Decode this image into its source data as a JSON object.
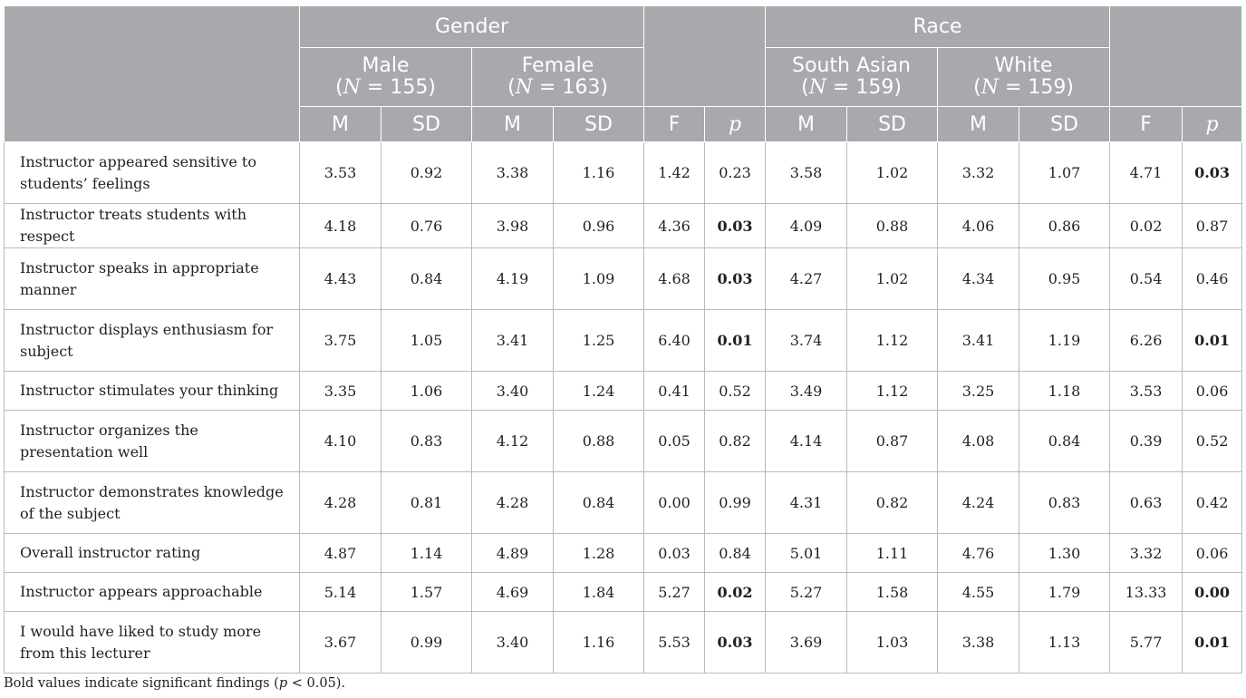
{
  "header": {
    "gender": "Gender",
    "race": "Race",
    "groups": [
      {
        "name": "Male",
        "n_prefix": "(",
        "n_var": "N",
        "n_rest": " = 155)"
      },
      {
        "name": "Female",
        "n_prefix": "(",
        "n_var": "N",
        "n_rest": " = 163)"
      },
      {
        "name": "South Asian",
        "n_prefix": "(",
        "n_var": "N",
        "n_rest": " = 159)"
      },
      {
        "name": "White",
        "n_prefix": "(",
        "n_var": "N",
        "n_rest": " = 159)"
      }
    ],
    "m": "M",
    "sd": "SD",
    "f": "F",
    "p": "p"
  },
  "rows": [
    {
      "label": "Instructor appeared sensitive to students’ feelings",
      "tall": true,
      "cells": [
        "3.53",
        "0.92",
        "3.38",
        "1.16",
        "1.42",
        "0.23",
        "3.58",
        "1.02",
        "3.32",
        "1.07",
        "4.71",
        "0.03"
      ],
      "sig": [
        false,
        false,
        false,
        false,
        false,
        false,
        false,
        false,
        false,
        false,
        false,
        true
      ]
    },
    {
      "label": "Instructor treats students with respect",
      "tall": false,
      "cells": [
        "4.18",
        "0.76",
        "3.98",
        "0.96",
        "4.36",
        "0.03",
        "4.09",
        "0.88",
        "4.06",
        "0.86",
        "0.02",
        "0.87"
      ],
      "sig": [
        false,
        false,
        false,
        false,
        false,
        true,
        false,
        false,
        false,
        false,
        false,
        false
      ]
    },
    {
      "label": "Instructor speaks in appropriate manner",
      "tall": true,
      "cells": [
        "4.43",
        "0.84",
        "4.19",
        "1.09",
        "4.68",
        "0.03",
        "4.27",
        "1.02",
        "4.34",
        "0.95",
        "0.54",
        "0.46"
      ],
      "sig": [
        false,
        false,
        false,
        false,
        false,
        true,
        false,
        false,
        false,
        false,
        false,
        false
      ]
    },
    {
      "label": "Instructor displays enthusiasm for subject",
      "tall": true,
      "cells": [
        "3.75",
        "1.05",
        "3.41",
        "1.25",
        "6.40",
        "0.01",
        "3.74",
        "1.12",
        "3.41",
        "1.19",
        "6.26",
        "0.01"
      ],
      "sig": [
        false,
        false,
        false,
        false,
        false,
        true,
        false,
        false,
        false,
        false,
        false,
        true
      ]
    },
    {
      "label": "Instructor stimulates your thinking",
      "tall": false,
      "cells": [
        "3.35",
        "1.06",
        "3.40",
        "1.24",
        "0.41",
        "0.52",
        "3.49",
        "1.12",
        "3.25",
        "1.18",
        "3.53",
        "0.06"
      ],
      "sig": [
        false,
        false,
        false,
        false,
        false,
        false,
        false,
        false,
        false,
        false,
        false,
        false
      ]
    },
    {
      "label": "Instructor organizes the presentation well",
      "tall": true,
      "cells": [
        "4.10",
        "0.83",
        "4.12",
        "0.88",
        "0.05",
        "0.82",
        "4.14",
        "0.87",
        "4.08",
        "0.84",
        "0.39",
        "0.52"
      ],
      "sig": [
        false,
        false,
        false,
        false,
        false,
        false,
        false,
        false,
        false,
        false,
        false,
        false
      ]
    },
    {
      "label": "Instructor demonstrates knowledge of the subject",
      "tall": true,
      "cells": [
        "4.28",
        "0.81",
        "4.28",
        "0.84",
        "0.00",
        "0.99",
        "4.31",
        "0.82",
        "4.24",
        "0.83",
        "0.63",
        "0.42"
      ],
      "sig": [
        false,
        false,
        false,
        false,
        false,
        false,
        false,
        false,
        false,
        false,
        false,
        false
      ]
    },
    {
      "label": "Overall instructor rating",
      "tall": false,
      "cells": [
        "4.87",
        "1.14",
        "4.89",
        "1.28",
        "0.03",
        "0.84",
        "5.01",
        "1.11",
        "4.76",
        "1.30",
        "3.32",
        "0.06"
      ],
      "sig": [
        false,
        false,
        false,
        false,
        false,
        false,
        false,
        false,
        false,
        false,
        false,
        false
      ]
    },
    {
      "label": "Instructor appears approachable",
      "tall": false,
      "cells": [
        "5.14",
        "1.57",
        "4.69",
        "1.84",
        "5.27",
        "0.02",
        "5.27",
        "1.58",
        "4.55",
        "1.79",
        "13.33",
        "0.00"
      ],
      "sig": [
        false,
        false,
        false,
        false,
        false,
        true,
        false,
        false,
        false,
        false,
        false,
        true
      ]
    },
    {
      "label": "I would have liked to study more from this lecturer",
      "tall": true,
      "cells": [
        "3.67",
        "0.99",
        "3.40",
        "1.16",
        "5.53",
        "0.03",
        "3.69",
        "1.03",
        "3.38",
        "1.13",
        "5.77",
        "0.01"
      ],
      "sig": [
        false,
        false,
        false,
        false,
        false,
        true,
        false,
        false,
        false,
        false,
        false,
        true
      ]
    }
  ],
  "note": {
    "before": "Bold values indicate significant findings (",
    "p": "p",
    "after": " < 0.05)."
  }
}
